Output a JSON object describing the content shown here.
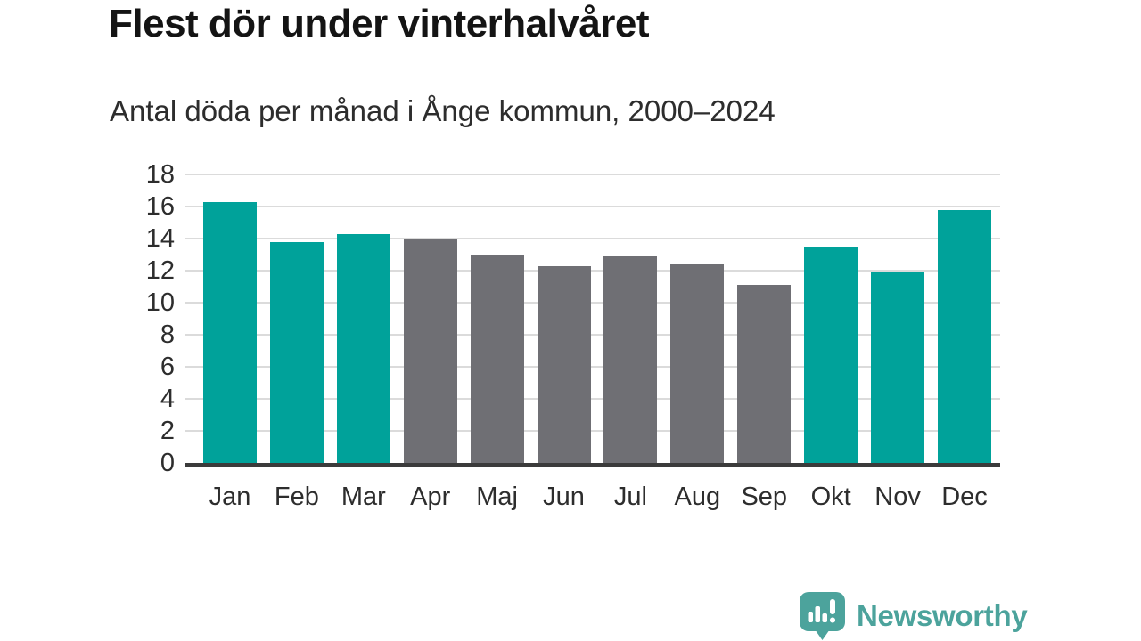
{
  "header": {
    "title": "Flest dör under vinterhalvåret",
    "subtitle": "Antal döda per månad i Ånge kommun, 2000–2024"
  },
  "chart_data": {
    "type": "bar",
    "title": "Flest dör under vinterhalvåret",
    "subtitle": "Antal döda per månad i Ånge kommun, 2000–2024",
    "categories": [
      "Jan",
      "Feb",
      "Mar",
      "Apr",
      "Maj",
      "Jun",
      "Jul",
      "Aug",
      "Sep",
      "Okt",
      "Nov",
      "Dec"
    ],
    "values": [
      16.3,
      13.8,
      14.3,
      14.0,
      13.0,
      12.3,
      12.9,
      12.4,
      11.1,
      13.5,
      11.9,
      15.8
    ],
    "bar_colors": [
      "#00a29a",
      "#00a29a",
      "#00a29a",
      "#6f6f74",
      "#6f6f74",
      "#6f6f74",
      "#6f6f74",
      "#6f6f74",
      "#6f6f74",
      "#00a29a",
      "#00a29a",
      "#00a29a"
    ],
    "highlight_meaning": "winter-half-year months in teal, summer-half-year months in gray",
    "xlabel": "",
    "ylabel": "",
    "ylim": [
      0,
      18
    ],
    "yticks": [
      0,
      2,
      4,
      6,
      8,
      10,
      12,
      14,
      16,
      18
    ],
    "grid": "horizontal",
    "legend": "none"
  },
  "colors": {
    "winter_bar": "#00a29a",
    "summer_bar": "#6f6f74",
    "gridline": "#dbdbdb",
    "axis_line": "#3b3b3b",
    "text": "#2d2d2d",
    "title_text": "#141414",
    "brand": "#4ca39c"
  },
  "branding": {
    "logo_text": "Newsworthy",
    "logo_icon": "newsworthy-speech-bubble-bar-chart-icon"
  }
}
